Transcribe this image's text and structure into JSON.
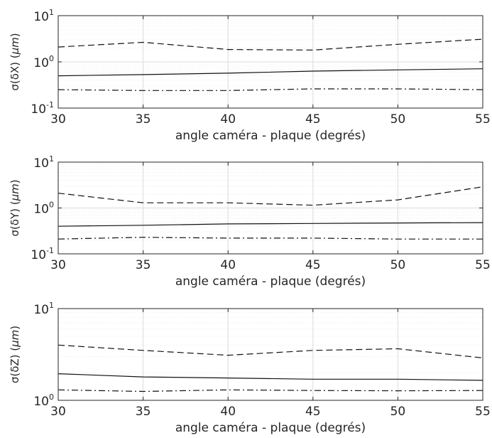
{
  "chart_data": [
    {
      "type": "line",
      "yscale": "log",
      "xlabel": "angle caméra - plaque (degrés)",
      "ylabel_prefix": "σ(δX) (",
      "ylabel_unit": "μm",
      "ylabel_suffix": ")",
      "x": [
        30,
        35,
        40,
        45,
        50,
        55
      ],
      "xlim": [
        30,
        55
      ],
      "ylim": [
        0.1,
        10
      ],
      "xticks": [
        "30",
        "35",
        "40",
        "45",
        "50",
        "55"
      ],
      "yticks": [
        {
          "base": "10",
          "exp": "-1"
        },
        {
          "base": "10",
          "exp": "0"
        },
        {
          "base": "10",
          "exp": "1"
        }
      ],
      "grid": true,
      "series": [
        {
          "style": "dashed",
          "values": [
            2.1,
            2.65,
            1.85,
            1.8,
            2.4,
            3.1
          ]
        },
        {
          "style": "solid",
          "values": [
            0.5,
            0.53,
            0.57,
            0.63,
            0.67,
            0.71
          ]
        },
        {
          "style": "dashdot",
          "values": [
            0.25,
            0.24,
            0.24,
            0.26,
            0.26,
            0.25
          ]
        }
      ]
    },
    {
      "type": "line",
      "yscale": "log",
      "xlabel": "angle caméra - plaque (degrés)",
      "ylabel_prefix": "σ(δY) (",
      "ylabel_unit": "μm",
      "ylabel_suffix": ")",
      "x": [
        30,
        35,
        40,
        45,
        50,
        55
      ],
      "xlim": [
        30,
        55
      ],
      "ylim": [
        0.1,
        10
      ],
      "xticks": [
        "30",
        "35",
        "40",
        "45",
        "50",
        "55"
      ],
      "yticks": [
        {
          "base": "10",
          "exp": "-1"
        },
        {
          "base": "10",
          "exp": "0"
        },
        {
          "base": "10",
          "exp": "1"
        }
      ],
      "grid": true,
      "series": [
        {
          "style": "dashed",
          "values": [
            2.1,
            1.3,
            1.3,
            1.15,
            1.5,
            2.9
          ]
        },
        {
          "style": "solid",
          "values": [
            0.4,
            0.42,
            0.45,
            0.46,
            0.47,
            0.48
          ]
        },
        {
          "style": "dashdot",
          "values": [
            0.21,
            0.23,
            0.22,
            0.22,
            0.21,
            0.21
          ]
        }
      ]
    },
    {
      "type": "line",
      "yscale": "log",
      "xlabel": "angle caméra - plaque (degrés)",
      "ylabel_prefix": "σ(δZ) (",
      "ylabel_unit": "μm",
      "ylabel_suffix": ")",
      "x": [
        30,
        35,
        40,
        45,
        50,
        55
      ],
      "xlim": [
        30,
        55
      ],
      "ylim": [
        1,
        10
      ],
      "xticks": [
        "30",
        "35",
        "40",
        "45",
        "50",
        "55"
      ],
      "yticks": [
        {
          "base": "10",
          "exp": "0"
        },
        {
          "base": "10",
          "exp": "1"
        }
      ],
      "grid": true,
      "series": [
        {
          "style": "dashed",
          "values": [
            4.0,
            3.5,
            3.1,
            3.5,
            3.65,
            2.9
          ]
        },
        {
          "style": "solid",
          "values": [
            1.95,
            1.8,
            1.75,
            1.7,
            1.7,
            1.65
          ]
        },
        {
          "style": "dashdot",
          "values": [
            1.3,
            1.25,
            1.3,
            1.28,
            1.27,
            1.28
          ]
        }
      ]
    }
  ]
}
